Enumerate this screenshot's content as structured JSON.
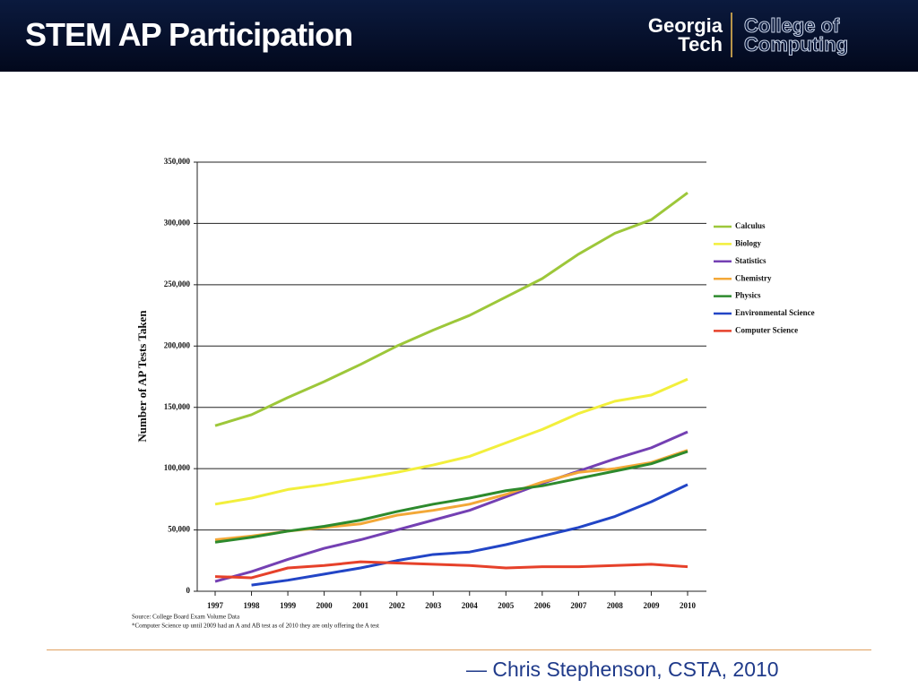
{
  "slide_title": "STEM AP Participation",
  "logo": {
    "left": [
      "Georgia",
      "Tech"
    ],
    "right": [
      "College of",
      "Computing"
    ]
  },
  "notes": [
    "Source: College Board Exam Volume Data",
    "*Computer Science up until 2009 had an A and AB test as of 2010 they are only offering the A test"
  ],
  "quote": "— Chris Stephenson, CSTA, 2010",
  "chart_data": {
    "type": "line",
    "ylabel": "Number of  AP Tests Taken",
    "categories": [
      "1997",
      "1998",
      "1999",
      "2000",
      "2001",
      "2002",
      "2003",
      "2004",
      "2005",
      "2006",
      "2007",
      "2008",
      "2009",
      "2010"
    ],
    "ylim": [
      0,
      350000
    ],
    "yticks": [
      0,
      {
        "value": 50000,
        "label": "50,000"
      },
      {
        "value": 100000,
        "label": "100,000"
      },
      {
        "value": 150000,
        "label": "150,000"
      },
      {
        "value": 200000,
        "label": "200,000"
      },
      {
        "value": 250000,
        "label": "250,000"
      },
      {
        "value": 300000,
        "label": "300,000"
      },
      {
        "value": 350000,
        "label": "350,000"
      }
    ],
    "grid": true,
    "legend": "right",
    "series": [
      {
        "name": "Calculus",
        "color": "#9dc73a",
        "values": [
          135000,
          144000,
          158000,
          171000,
          185000,
          200000,
          213000,
          225000,
          240000,
          255000,
          275000,
          292000,
          303000,
          325000
        ]
      },
      {
        "name": "Biology",
        "color": "#f2ef3c",
        "values": [
          71000,
          76000,
          83000,
          87000,
          92000,
          97000,
          103000,
          110000,
          121000,
          132000,
          145000,
          155000,
          160000,
          173000
        ]
      },
      {
        "name": "Statistics",
        "color": "#7440b3",
        "values": [
          8000,
          16000,
          26000,
          35000,
          42000,
          50000,
          58000,
          66000,
          77000,
          88000,
          98000,
          108000,
          117000,
          130000
        ]
      },
      {
        "name": "Chemistry",
        "color": "#f3a838",
        "values": [
          42000,
          45000,
          49000,
          52000,
          55000,
          62000,
          66000,
          71000,
          79000,
          89000,
          97000,
          100000,
          105000,
          115000
        ]
      },
      {
        "name": "Physics",
        "color": "#2d8a2d",
        "values": [
          40000,
          44000,
          49000,
          53000,
          58000,
          65000,
          71000,
          76000,
          82000,
          86000,
          92000,
          98000,
          104000,
          114000
        ]
      },
      {
        "name": "Environmental Science",
        "color": "#2245c6",
        "values": [
          null,
          5000,
          9000,
          14000,
          19000,
          25000,
          30000,
          32000,
          38000,
          45000,
          52000,
          61000,
          73000,
          87000
        ]
      },
      {
        "name": "Computer Science",
        "color": "#e6412a",
        "values": [
          12000,
          11000,
          19000,
          21000,
          24000,
          23000,
          22000,
          21000,
          19000,
          20000,
          20000,
          21000,
          22000,
          20000
        ]
      }
    ]
  }
}
